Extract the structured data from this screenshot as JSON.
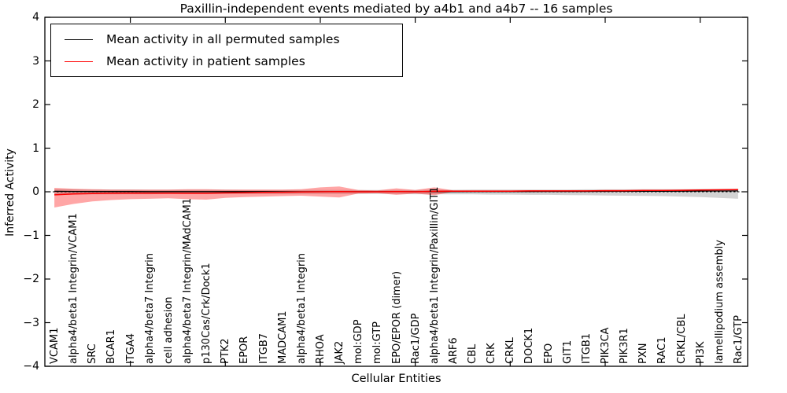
{
  "chart_data": {
    "type": "line",
    "title": "Paxillin-independent events mediated by a4b1 and a4b7 -- 16 samples",
    "xlabel": "Cellular Entities",
    "ylabel": "Inferred Activity",
    "ylim": [
      -4,
      4
    ],
    "ytick_labels": [
      "4",
      "3",
      "2",
      "1",
      "0",
      "−1",
      "−2",
      "−3",
      "−4"
    ],
    "ytick_values": [
      4,
      3,
      2,
      1,
      0,
      -1,
      -2,
      -3,
      -4
    ],
    "x_major_tick_indices": [
      4,
      9,
      14,
      19,
      24,
      29,
      34
    ],
    "grid": false,
    "legend_position": "upper left",
    "categories": [
      "VCAM1",
      "alpha4/beta1 Integrin/VCAM1",
      "SRC",
      "BCAR1",
      "ITGA4",
      "alpha4/beta7 Integrin",
      "cell adhesion",
      "alpha4/beta7 Integrin/MAdCAM1",
      "p130Cas/Crk/Dock1",
      "PTK2",
      "EPOR",
      "ITGB7",
      "MADCAM1",
      "alpha4/beta1 Integrin",
      "RHOA",
      "JAK2",
      "mol:GDP",
      "mol:GTP",
      "EPO/EPOR (dimer)",
      "Rac1/GDP",
      "alpha4/beta1 Integrin/Paxillin/GIT1",
      "ARF6",
      "CBL",
      "CRK",
      "CRKL",
      "DOCK1",
      "EPO",
      "GIT1",
      "ITGB1",
      "PIK3CA",
      "PIK3R1",
      "PXN",
      "RAC1",
      "CRKL/CBL",
      "PI3K",
      "lamellipodium assembly",
      "Rac1/GTP"
    ],
    "series": [
      {
        "name": "Mean activity in all permuted samples",
        "color": "#000000",
        "line_width": 1.3,
        "band_color": "rgba(128,128,128,0.35)",
        "values": [
          0.01,
          0.008,
          0.006,
          0.005,
          0.005,
          0.004,
          0.004,
          0.004,
          0.003,
          0.003,
          0.003,
          0.003,
          0.002,
          0.002,
          0.002,
          0.002,
          0.002,
          0.002,
          0.002,
          0.002,
          0.003,
          0.004,
          0.005,
          0.005,
          0.006,
          0.006,
          0.007,
          0.008,
          0.008,
          0.009,
          0.01,
          0.011,
          0.012,
          0.014,
          0.016,
          0.018,
          0.02
        ],
        "band_upper": [
          0.06,
          0.055,
          0.05,
          0.05,
          0.05,
          0.045,
          0.045,
          0.045,
          0.045,
          0.045,
          0.04,
          0.04,
          0.04,
          0.04,
          0.04,
          0.04,
          0.04,
          0.04,
          0.04,
          0.04,
          0.045,
          0.045,
          0.05,
          0.05,
          0.05,
          0.05,
          0.05,
          0.05,
          0.055,
          0.055,
          0.055,
          0.06,
          0.06,
          0.06,
          0.065,
          0.065,
          0.07
        ],
        "band_lower": [
          -0.07,
          -0.065,
          -0.06,
          -0.06,
          -0.055,
          -0.055,
          -0.05,
          -0.05,
          -0.05,
          -0.05,
          -0.05,
          -0.05,
          -0.05,
          -0.05,
          -0.05,
          -0.05,
          -0.05,
          -0.05,
          -0.05,
          -0.055,
          -0.055,
          -0.06,
          -0.06,
          -0.065,
          -0.065,
          -0.07,
          -0.07,
          -0.075,
          -0.08,
          -0.085,
          -0.09,
          -0.095,
          -0.1,
          -0.11,
          -0.12,
          -0.14,
          -0.16
        ]
      },
      {
        "name": "Mean activity in patient samples",
        "color": "#ff0000",
        "line_width": 1.5,
        "band_color": "rgba(255,0,0,0.35)",
        "values": [
          -0.07,
          -0.05,
          -0.04,
          -0.035,
          -0.03,
          -0.03,
          -0.03,
          -0.035,
          -0.035,
          -0.025,
          -0.02,
          -0.015,
          -0.01,
          -0.005,
          0.0,
          0.005,
          0.0,
          0.0,
          0.005,
          0.0,
          0.01,
          0.015,
          0.015,
          0.015,
          0.015,
          0.02,
          0.02,
          0.02,
          0.02,
          0.025,
          0.025,
          0.03,
          0.03,
          0.035,
          0.04,
          0.045,
          0.05
        ],
        "band_upper": [
          0.09,
          0.07,
          0.06,
          0.05,
          0.05,
          0.05,
          0.05,
          0.06,
          0.06,
          0.05,
          0.05,
          0.05,
          0.05,
          0.06,
          0.1,
          0.12,
          0.04,
          0.03,
          0.08,
          0.04,
          0.1,
          0.03,
          0.03,
          0.03,
          0.03,
          0.03,
          0.03,
          0.03,
          0.03,
          0.04,
          0.04,
          0.04,
          0.04,
          0.05,
          0.05,
          0.06,
          0.065
        ],
        "band_lower": [
          -0.36,
          -0.28,
          -0.22,
          -0.19,
          -0.17,
          -0.16,
          -0.15,
          -0.17,
          -0.18,
          -0.14,
          -0.12,
          -0.11,
          -0.1,
          -0.09,
          -0.11,
          -0.13,
          -0.04,
          -0.03,
          -0.07,
          -0.04,
          -0.08,
          0.0,
          0.0,
          0.0,
          0.0,
          0.005,
          0.005,
          0.005,
          0.005,
          0.01,
          0.01,
          0.015,
          0.015,
          0.02,
          0.025,
          0.03,
          0.035
        ]
      }
    ],
    "zero_line": {
      "y": 0,
      "style": "dashed",
      "color": "#000000"
    }
  }
}
